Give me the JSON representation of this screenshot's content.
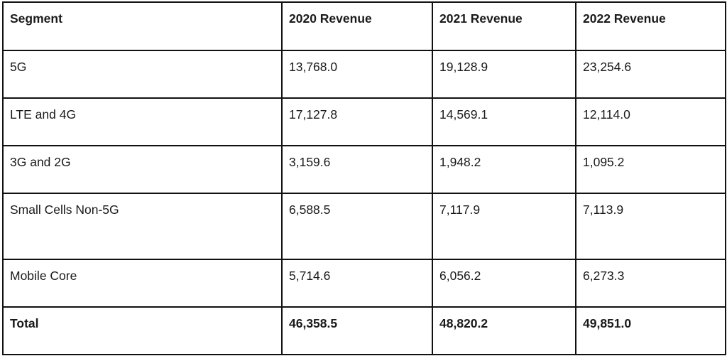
{
  "table": {
    "headers": [
      "Segment",
      "2020 Revenue",
      "2021 Revenue",
      "2022 Revenue"
    ],
    "rows": [
      {
        "segment": "5G",
        "y2020": "13,768.0",
        "y2021": "19,128.9",
        "y2022": "23,254.6"
      },
      {
        "segment": "LTE and 4G",
        "y2020": "17,127.8",
        "y2021": "14,569.1",
        "y2022": "12,114.0"
      },
      {
        "segment": "3G and 2G",
        "y2020": "3,159.6",
        "y2021": "1,948.2",
        "y2022": "1,095.2"
      },
      {
        "segment": "Small Cells Non-5G",
        "y2020": "6,588.5",
        "y2021": "7,117.9",
        "y2022": "7,113.9"
      },
      {
        "segment": "Mobile Core",
        "y2020": "5,714.6",
        "y2021": "6,056.2",
        "y2022": "6,273.3"
      }
    ],
    "total": {
      "segment": "Total",
      "y2020": "46,358.5",
      "y2021": "48,820.2",
      "y2022": "49,851.0"
    }
  },
  "colors": {
    "border": "#111111",
    "text": "#1a1a1a",
    "background": "#ffffff"
  }
}
